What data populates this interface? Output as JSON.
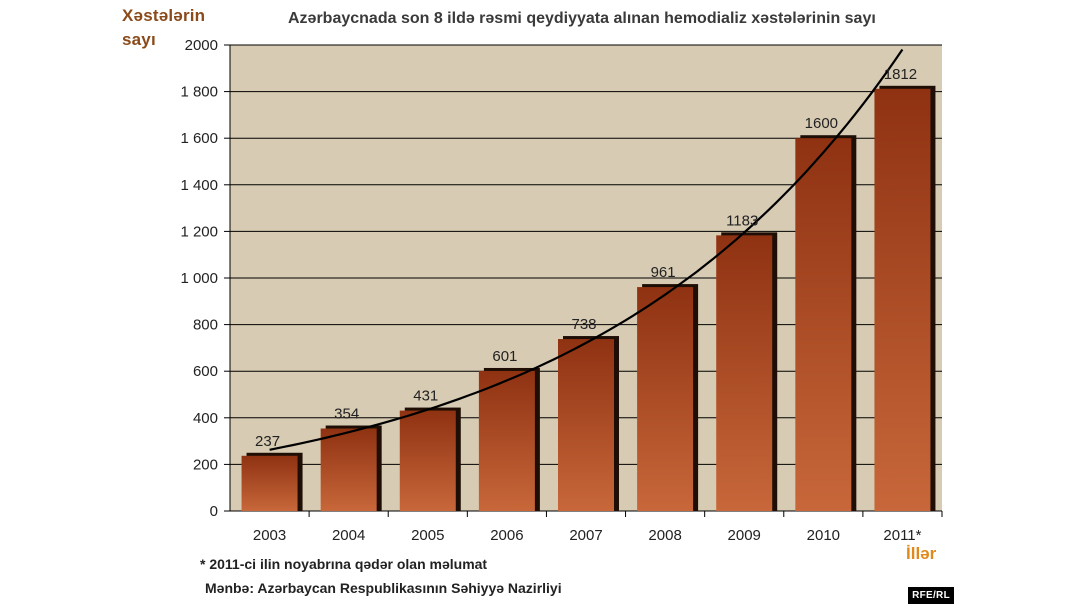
{
  "colors": {
    "plot_background": "#d8cbb3",
    "bar_fill_top": "#8f3212",
    "bar_fill_bottom": "#c7673a",
    "bar_shadow": "#1e0e06",
    "ylabel": "#8a4a1a",
    "xlabel": "#e08a1e",
    "trendline": "#000000"
  },
  "chart_data": {
    "type": "bar",
    "title": "Azərbaycnada son 8 ildə rəsmi qeydiyyata alınan hemodializ xəstələrinin sayı",
    "ylabel_lines": [
      "Xəstələrin",
      "sayı"
    ],
    "xlabel": "İllər",
    "categories": [
      "2003",
      "2004",
      "2005",
      "2006",
      "2007",
      "2008",
      "2009",
      "2010",
      "2011*"
    ],
    "values": [
      237,
      354,
      431,
      601,
      738,
      961,
      1183,
      1600,
      1812
    ],
    "value_labels": [
      "237",
      "354",
      "431",
      "601",
      "738",
      "961",
      "1183",
      "1600",
      "1812"
    ],
    "ylim": [
      0,
      2000
    ],
    "yticks": [
      0,
      200,
      400,
      600,
      800,
      1000,
      1200,
      1400,
      1600,
      1800,
      2000
    ],
    "ytick_labels": [
      "0",
      "200",
      "400",
      "600",
      "800",
      "1 000",
      "1 200",
      "1 400",
      "1 600",
      "1 800",
      "2000"
    ],
    "grid": true,
    "trendline": "exponential"
  },
  "footnote": "* 2011-ci ilin noyabrına qədər olan məlumat",
  "source": "Mənbə: Azərbaycan Respublikasının Səhiyyə Nazirliyi",
  "credit": "RFE/RL"
}
